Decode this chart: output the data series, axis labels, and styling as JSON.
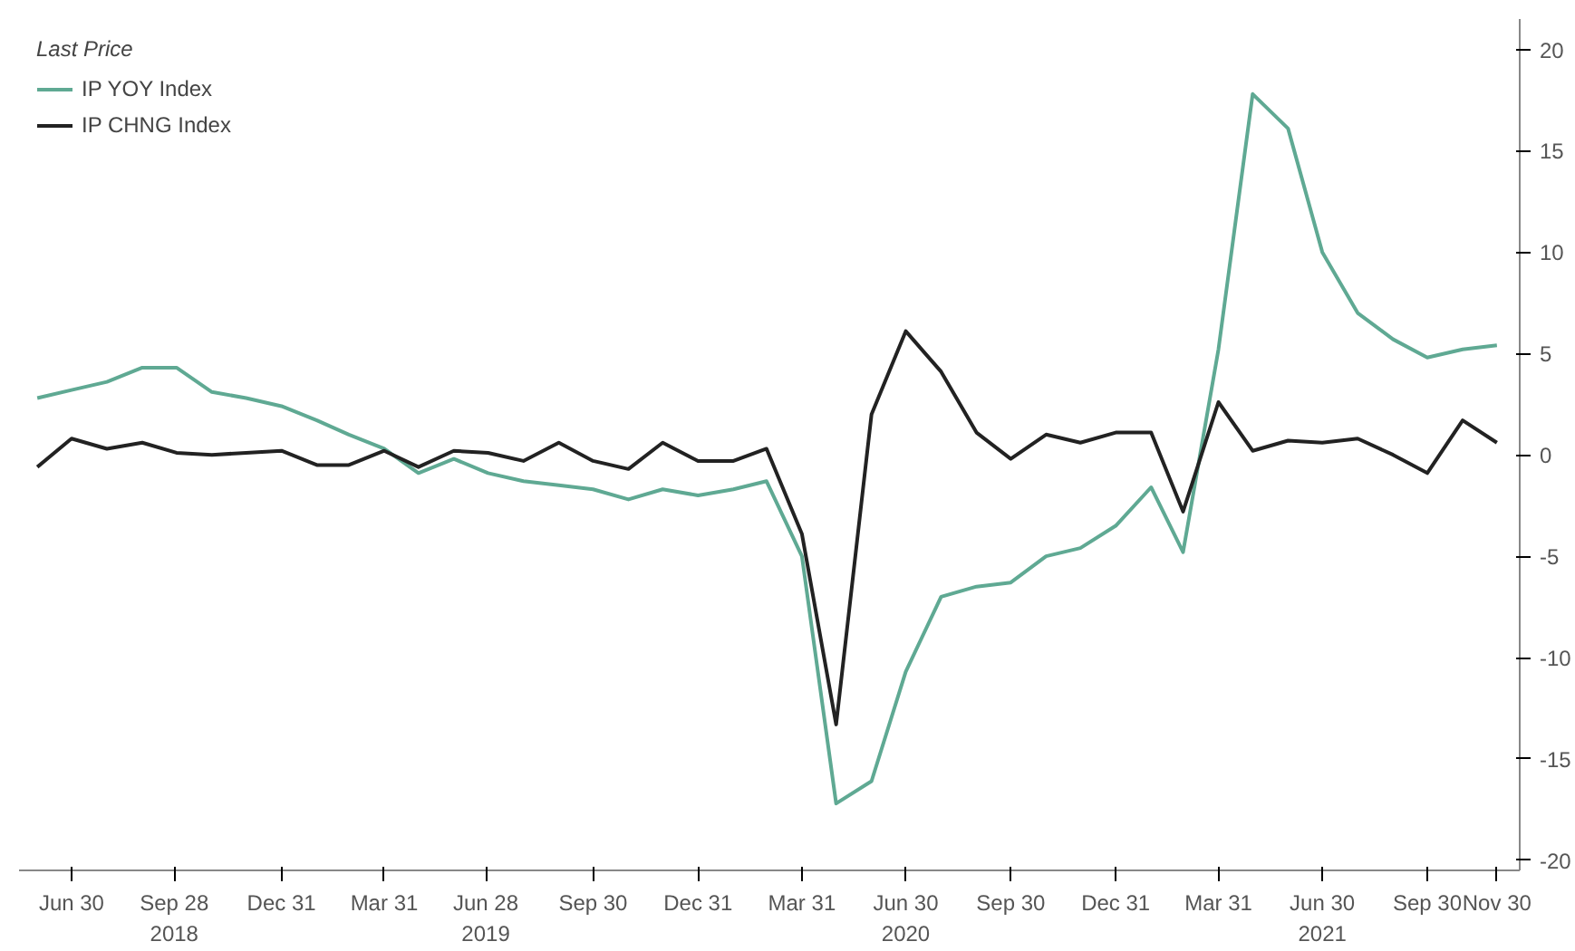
{
  "chart_data": {
    "type": "line",
    "legend_title": "Last Price",
    "legend": "top left",
    "grid": false,
    "marker": "none",
    "line_style": "solid",
    "x": [
      "2018-05-31",
      "2018-06-30",
      "2018-07-31",
      "2018-08-31",
      "2018-09-30",
      "2018-10-31",
      "2018-11-30",
      "2018-12-31",
      "2019-01-31",
      "2019-02-28",
      "2019-03-31",
      "2019-04-30",
      "2019-05-31",
      "2019-06-30",
      "2019-07-31",
      "2019-08-31",
      "2019-09-30",
      "2019-10-31",
      "2019-11-30",
      "2019-12-31",
      "2020-01-31",
      "2020-02-29",
      "2020-03-31",
      "2020-04-30",
      "2020-05-31",
      "2020-06-30",
      "2020-07-31",
      "2020-08-31",
      "2020-09-30",
      "2020-10-31",
      "2020-11-30",
      "2020-12-31",
      "2021-01-31",
      "2021-02-28",
      "2021-03-31",
      "2021-04-30",
      "2021-05-31",
      "2021-06-30",
      "2021-07-31",
      "2021-08-31",
      "2021-09-30",
      "2021-10-31",
      "2021-11-30"
    ],
    "xlim": [
      "2018-05-15",
      "2021-12-20"
    ],
    "xticks": [
      {
        "value": "2018-06-30",
        "label": "Jun 30"
      },
      {
        "value": "2018-09-28",
        "label": "Sep 28\n2018"
      },
      {
        "value": "2018-12-31",
        "label": "Dec 31"
      },
      {
        "value": "2019-03-31",
        "label": "Mar 31"
      },
      {
        "value": "2019-06-28",
        "label": "Jun 28\n2019"
      },
      {
        "value": "2019-09-30",
        "label": "Sep 30"
      },
      {
        "value": "2019-12-31",
        "label": "Dec 31"
      },
      {
        "value": "2020-03-31",
        "label": "Mar 31"
      },
      {
        "value": "2020-06-30",
        "label": "Jun 30\n2020"
      },
      {
        "value": "2020-09-30",
        "label": "Sep 30"
      },
      {
        "value": "2020-12-31",
        "label": "Dec 31"
      },
      {
        "value": "2021-03-31",
        "label": "Mar 31"
      },
      {
        "value": "2021-06-30",
        "label": "Jun 30\n2021"
      },
      {
        "value": "2021-09-30",
        "label": "Sep 30"
      },
      {
        "value": "2021-11-30",
        "label": "Nov 30"
      }
    ],
    "ylim": [
      -20.5,
      21.5
    ],
    "yticks": [
      -20,
      -15,
      -10,
      -5,
      0,
      5,
      10,
      15,
      20
    ],
    "series": [
      {
        "name": "IP YOY Index",
        "color": "#5fa993",
        "values": [
          2.8,
          3.2,
          3.6,
          4.3,
          4.3,
          3.1,
          2.8,
          2.4,
          1.7,
          1.0,
          0.3,
          -0.9,
          -0.2,
          -0.9,
          -1.3,
          -1.5,
          -1.7,
          -2.2,
          -1.7,
          -2.0,
          -1.7,
          -1.3,
          -5.0,
          -17.2,
          -16.1,
          -10.7,
          -7.0,
          -6.5,
          -6.3,
          -5.0,
          -4.6,
          -3.5,
          -1.6,
          -4.8,
          5.2,
          17.8,
          16.1,
          10.0,
          7.0,
          5.7,
          4.8,
          5.2,
          5.4
        ]
      },
      {
        "name": "IP CHNG Index",
        "color": "#222222",
        "values": [
          -0.6,
          0.8,
          0.3,
          0.6,
          0.1,
          0.0,
          0.1,
          0.2,
          -0.5,
          -0.5,
          0.2,
          -0.6,
          0.2,
          0.1,
          -0.3,
          0.6,
          -0.3,
          -0.7,
          0.6,
          -0.3,
          -0.3,
          0.3,
          -3.9,
          -13.3,
          2.0,
          6.1,
          4.1,
          1.1,
          -0.2,
          1.0,
          0.6,
          1.1,
          1.1,
          -2.8,
          2.6,
          0.2,
          0.7,
          0.6,
          0.8,
          0.0,
          -0.9,
          1.7,
          0.6
        ]
      }
    ]
  }
}
